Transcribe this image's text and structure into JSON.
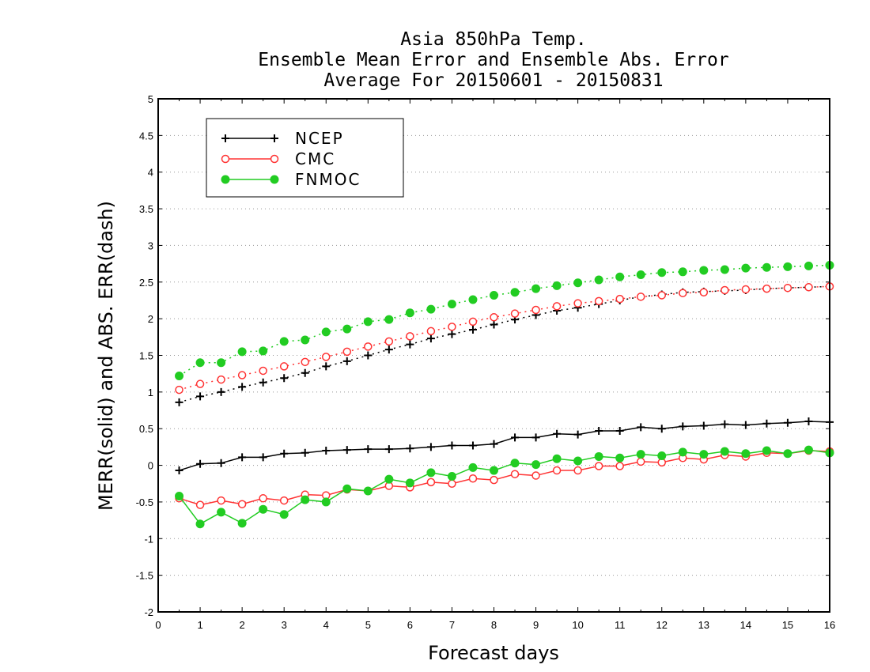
{
  "chart_data": {
    "type": "line",
    "title": [
      "Asia 850hPa Temp.",
      "Ensemble Mean Error and Ensemble Abs. Error",
      "Average For 20150601 - 20150831"
    ],
    "xlabel": "Forecast days",
    "ylabel": "MERR(solid) and ABS. ERR(dash)",
    "xlim": [
      0,
      16
    ],
    "ylim": [
      -2,
      5
    ],
    "xticks": [
      0,
      1,
      2,
      3,
      4,
      5,
      6,
      7,
      8,
      9,
      10,
      11,
      12,
      13,
      14,
      15,
      16
    ],
    "yticks": [
      -2,
      -1.5,
      -1,
      -0.5,
      0,
      0.5,
      1,
      1.5,
      2,
      2.5,
      3,
      3.5,
      4,
      4.5,
      5
    ],
    "ytick_labels": [
      "-2",
      "-1.5",
      "-1",
      "-0.5",
      "0",
      "0.5",
      "1",
      "1.5",
      "2",
      "2.5",
      "3",
      "3.5",
      "4",
      "4.5",
      "5"
    ],
    "grid": "horizontal dotted",
    "legend_position": "top-left",
    "x": [
      0.5,
      1,
      1.5,
      2,
      2.5,
      3,
      3.5,
      4,
      4.5,
      5,
      5.5,
      6,
      6.5,
      7,
      7.5,
      8,
      8.5,
      9,
      9.5,
      10,
      10.5,
      11,
      11.5,
      12,
      12.5,
      13,
      13.5,
      14,
      14.5,
      15,
      15.5,
      16
    ],
    "series": [
      {
        "name": "NCEP",
        "color": "#000000",
        "marker": "plus",
        "merr": [
          -0.07,
          0.02,
          0.03,
          0.11,
          0.11,
          0.16,
          0.17,
          0.2,
          0.21,
          0.22,
          0.22,
          0.23,
          0.25,
          0.27,
          0.27,
          0.29,
          0.38,
          0.38,
          0.43,
          0.42,
          0.47,
          0.47,
          0.52,
          0.5,
          0.53,
          0.54,
          0.56,
          0.55,
          0.57,
          0.58,
          0.6,
          0.59
        ],
        "abs_err": [
          0.86,
          0.94,
          1.0,
          1.07,
          1.13,
          1.19,
          1.26,
          1.35,
          1.42,
          1.5,
          1.58,
          1.65,
          1.73,
          1.79,
          1.85,
          1.92,
          1.99,
          2.05,
          2.11,
          2.15,
          2.2,
          2.25,
          2.3,
          2.33,
          2.36,
          2.37,
          2.38,
          2.39,
          2.41,
          2.42,
          2.43,
          2.44
        ]
      },
      {
        "name": "CMC",
        "color": "#ff3333",
        "marker": "open-circle",
        "merr": [
          -0.45,
          -0.54,
          -0.48,
          -0.53,
          -0.45,
          -0.48,
          -0.4,
          -0.41,
          -0.33,
          -0.35,
          -0.28,
          -0.3,
          -0.23,
          -0.25,
          -0.18,
          -0.2,
          -0.12,
          -0.14,
          -0.07,
          -0.07,
          -0.01,
          -0.01,
          0.05,
          0.04,
          0.1,
          0.08,
          0.14,
          0.12,
          0.17,
          0.16,
          0.2,
          0.19
        ],
        "abs_err": [
          1.03,
          1.11,
          1.17,
          1.23,
          1.29,
          1.35,
          1.41,
          1.48,
          1.55,
          1.62,
          1.69,
          1.76,
          1.83,
          1.89,
          1.96,
          2.02,
          2.07,
          2.12,
          2.17,
          2.21,
          2.24,
          2.27,
          2.3,
          2.32,
          2.35,
          2.36,
          2.39,
          2.4,
          2.41,
          2.42,
          2.43,
          2.44
        ]
      },
      {
        "name": "FNMOC",
        "color": "#22cc22",
        "marker": "filled-circle",
        "merr": [
          -0.42,
          -0.8,
          -0.64,
          -0.79,
          -0.6,
          -0.67,
          -0.47,
          -0.5,
          -0.32,
          -0.35,
          -0.19,
          -0.24,
          -0.1,
          -0.15,
          -0.03,
          -0.07,
          0.03,
          0.01,
          0.09,
          0.06,
          0.12,
          0.1,
          0.15,
          0.13,
          0.18,
          0.15,
          0.19,
          0.16,
          0.2,
          0.16,
          0.21,
          0.17
        ],
        "abs_err": [
          1.22,
          1.4,
          1.4,
          1.55,
          1.56,
          1.69,
          1.71,
          1.82,
          1.86,
          1.96,
          1.99,
          2.08,
          2.13,
          2.2,
          2.26,
          2.32,
          2.36,
          2.41,
          2.45,
          2.49,
          2.53,
          2.57,
          2.6,
          2.63,
          2.64,
          2.66,
          2.67,
          2.69,
          2.7,
          2.71,
          2.72,
          2.73
        ]
      }
    ]
  }
}
